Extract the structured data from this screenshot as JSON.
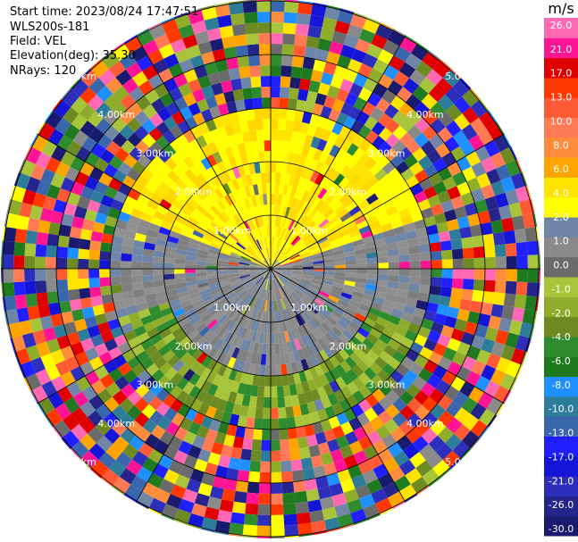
{
  "header": {
    "start_time": "Start time: 2023/08/24 17:47:51",
    "instrument": "WLS200s-181",
    "field": "Field: VEL",
    "elevation": "Elevation(deg): 35.30",
    "nrays": "NRays: 120"
  },
  "colorbar": {
    "unit": "m/s",
    "colors": [
      "#1a1a6e",
      "#24248a",
      "#2e2ebd",
      "#1515d8",
      "#1f1fff",
      "#3a66ad",
      "#2d7d9a",
      "#1e90ff",
      "#1f7a1f",
      "#2e8b2e",
      "#6e8b23",
      "#8fad2a",
      "#a8c43a",
      "#6b6b6b",
      "#8a8a8a",
      "#6f86a8",
      "#ffff00",
      "#ffe400",
      "#ffa500",
      "#ff8c3a",
      "#ff7a55",
      "#ff5a36",
      "#ff3800",
      "#e00000",
      "#ff1493",
      "#ff69b4"
    ],
    "tick_labels": [
      "-30.0",
      "-26.0",
      "-21.0",
      "-17.0",
      "-13.0",
      "-10.0",
      "-8.0",
      "-6.0",
      "-4.0",
      "-2.0",
      "-1.0",
      "0.0",
      "1.0",
      "2.0",
      "4.0",
      "6.0",
      "8.0",
      "10.0",
      "13.0",
      "17.0",
      "21.0",
      "26.0"
    ]
  },
  "rings": [
    {
      "label": "1.00km"
    },
    {
      "label": "2.00km"
    },
    {
      "label": "3.00km"
    },
    {
      "label": "4.00km"
    },
    {
      "label": "5.00km"
    }
  ]
}
